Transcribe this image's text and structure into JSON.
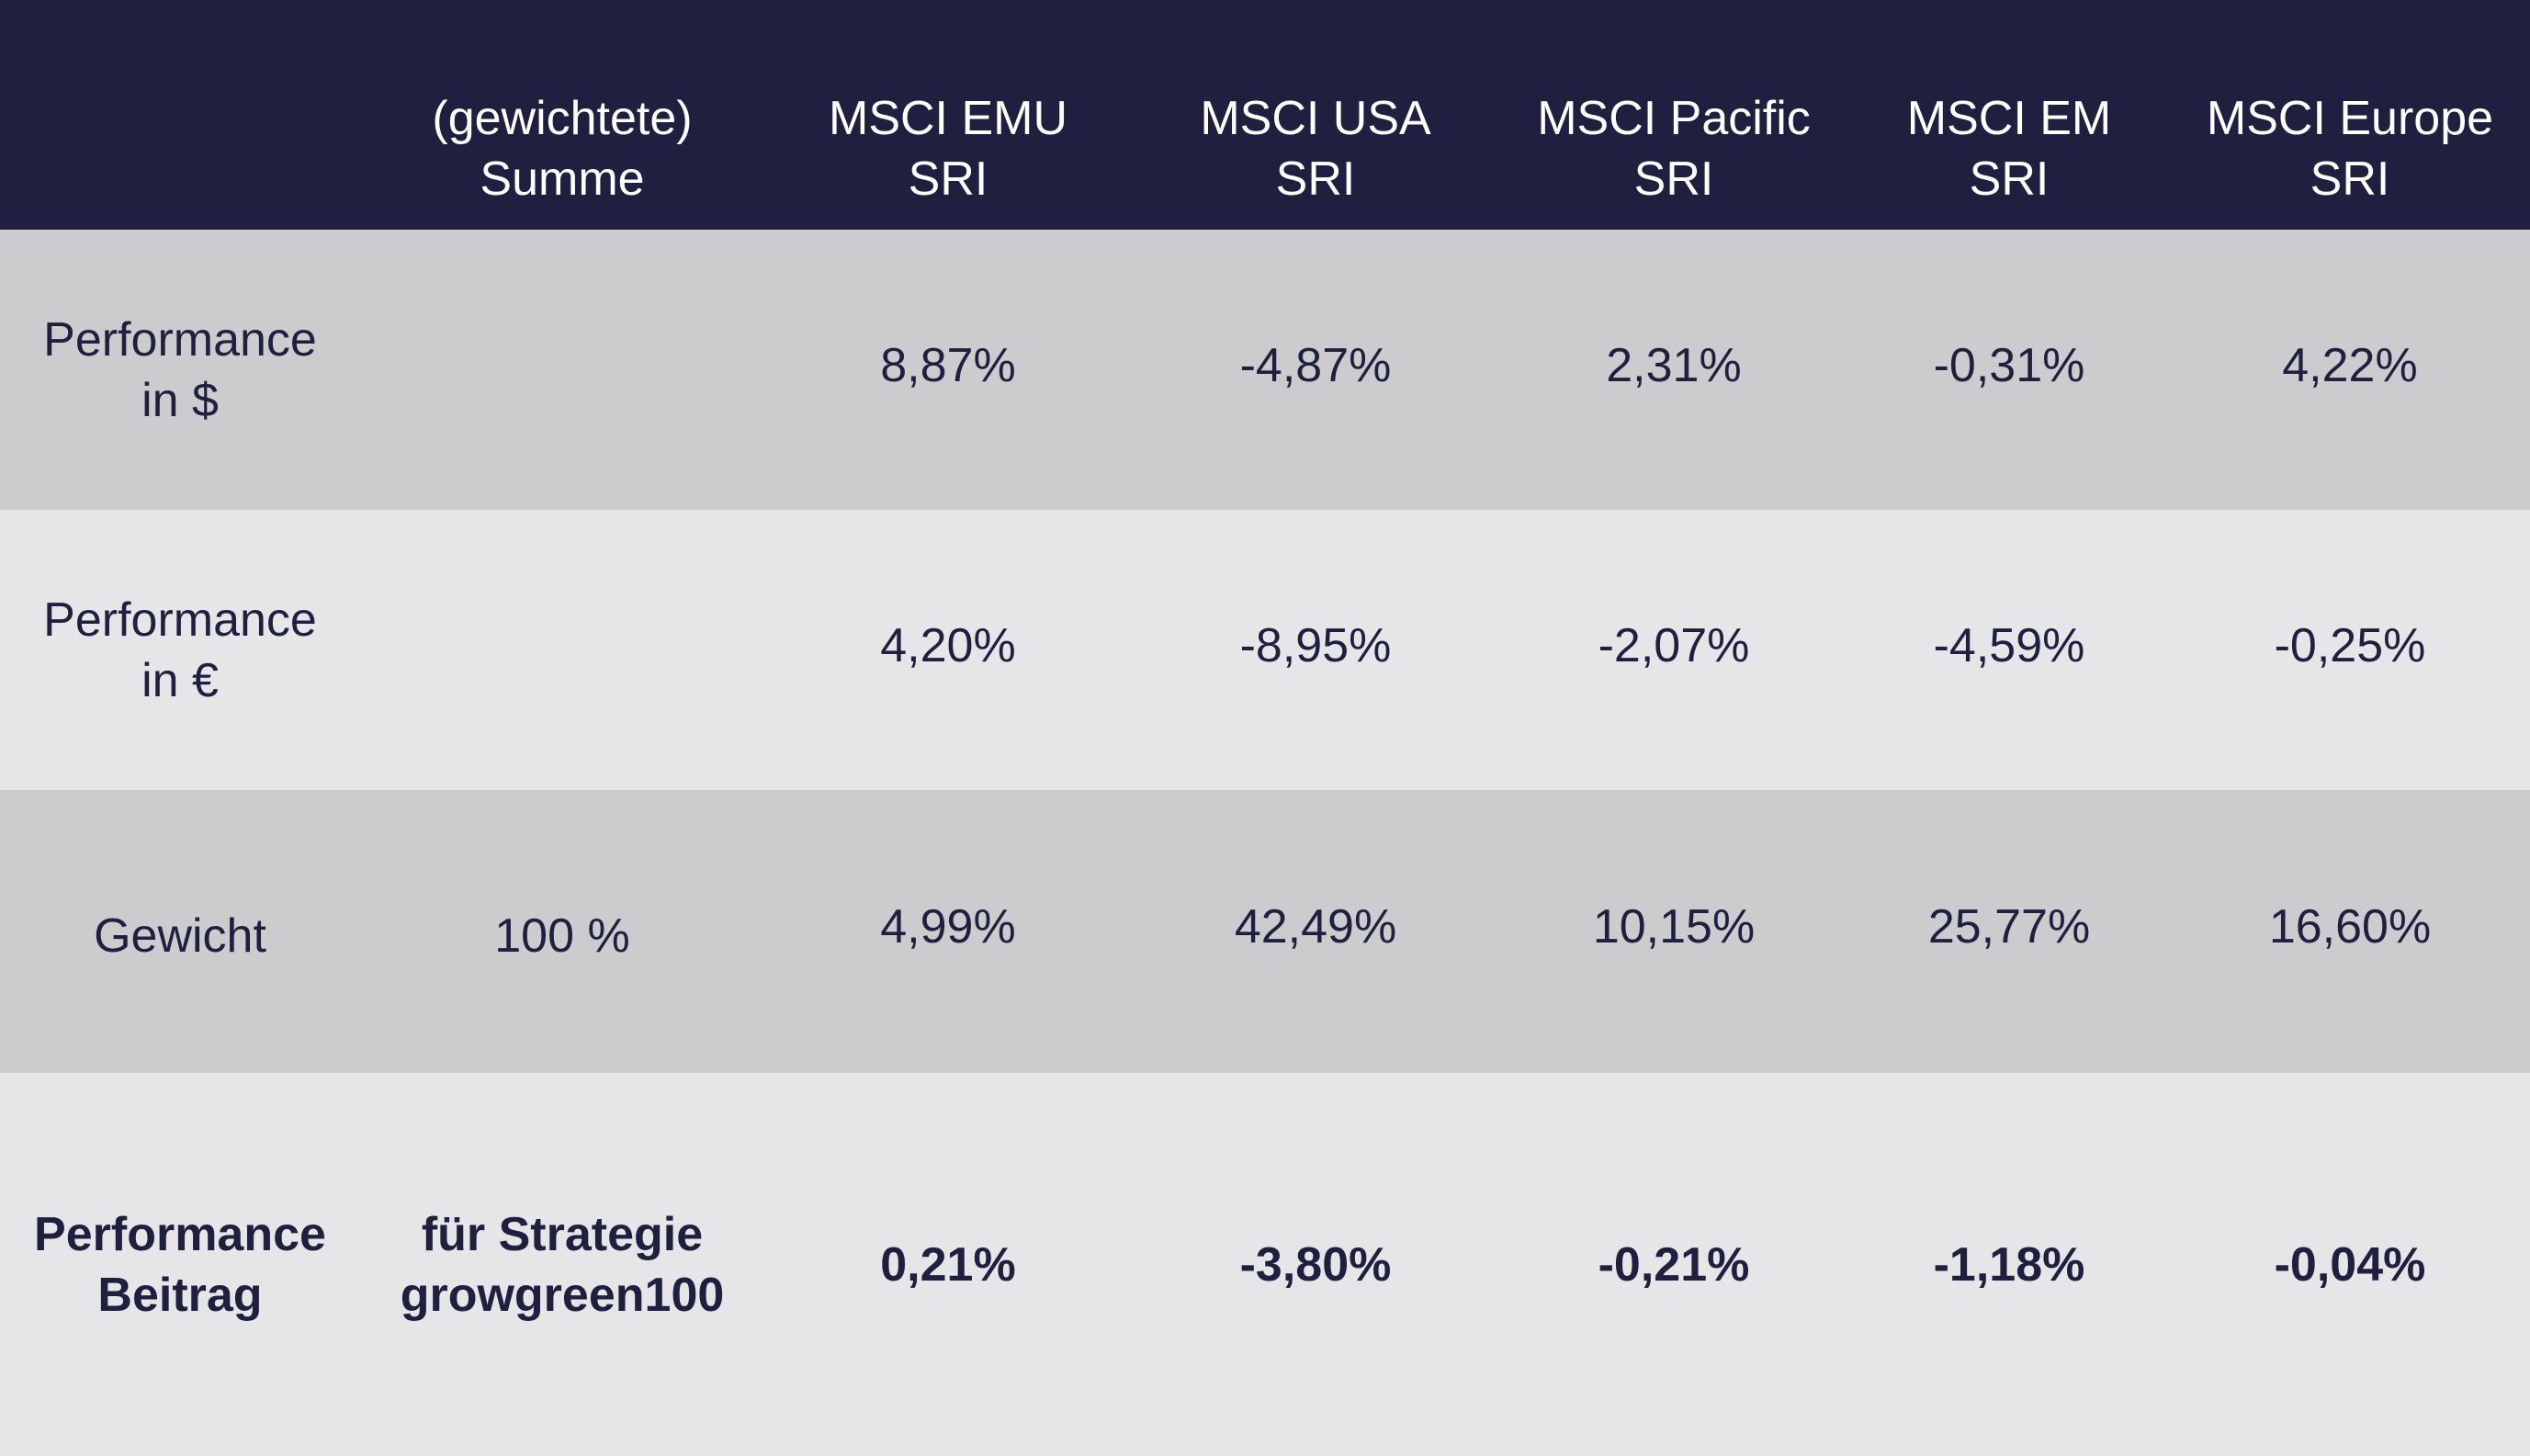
{
  "header": {
    "corner": "",
    "sum": "(gewichtete)\nSumme",
    "columns": [
      "MSCI EMU\nSRI",
      "MSCI USA\nSRI",
      "MSCI Pacific\nSRI",
      "MSCI EM\nSRI",
      "MSCI Europe\nSRI"
    ]
  },
  "rows": [
    {
      "label": "Performance\nin $",
      "sum": "",
      "values": [
        "8,87%",
        "-4,87%",
        "2,31%",
        "-0,31%",
        "4,22%"
      ]
    },
    {
      "label": "Performance\nin €",
      "sum": "",
      "values": [
        "4,20%",
        "-8,95%",
        "-2,07%",
        "-4,59%",
        "-0,25%"
      ]
    },
    {
      "label": "Gewicht",
      "sum": "100 %",
      "values": [
        "4,99%",
        "42,49%",
        "10,15%",
        "25,77%",
        "16,60%"
      ]
    },
    {
      "label": "Performance\nBeitrag",
      "sum": "für Strategie\ngrowgreen100",
      "values": [
        "0,21%",
        "-3,80%",
        "-0,21%",
        "-1,18%",
        "-0,04%"
      ]
    }
  ],
  "colors": {
    "header_bg": "#1f2040",
    "row_dark": "#ccccce",
    "row_light": "#e6e6e8",
    "text": "#1f2040"
  }
}
